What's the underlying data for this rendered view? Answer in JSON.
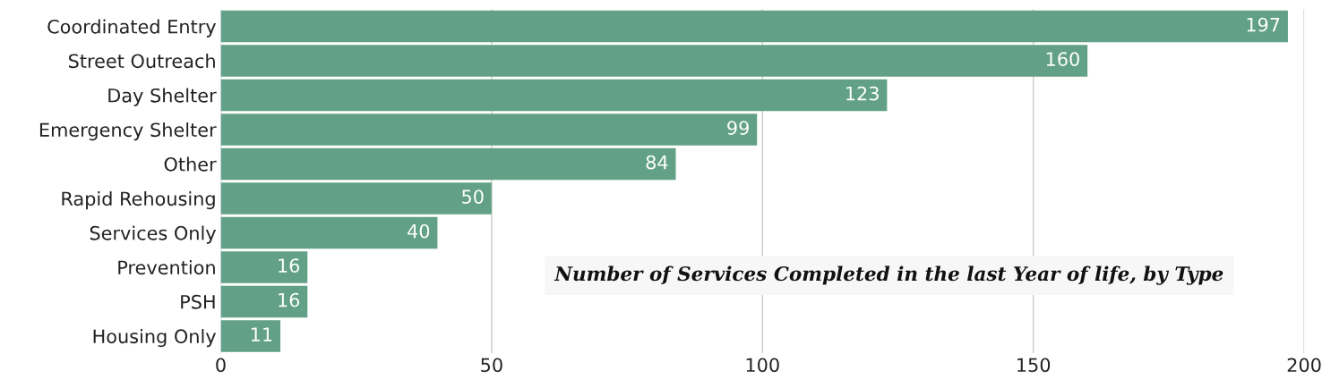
{
  "chart_data": {
    "type": "bar",
    "orientation": "horizontal",
    "title": "Number of Services Completed in the last Year of life, by Type",
    "categories": [
      "Coordinated Entry",
      "Street Outreach",
      "Day Shelter",
      "Emergency Shelter",
      "Other",
      "Rapid Rehousing",
      "Services Only",
      "Prevention",
      "PSH",
      "Housing Only"
    ],
    "values": [
      197,
      160,
      123,
      99,
      84,
      50,
      40,
      16,
      16,
      11
    ],
    "color": "#62a187",
    "xlim": [
      0,
      200
    ],
    "xticks": [
      0,
      50,
      100,
      150,
      200
    ],
    "grid": "x",
    "data_labels": true
  }
}
